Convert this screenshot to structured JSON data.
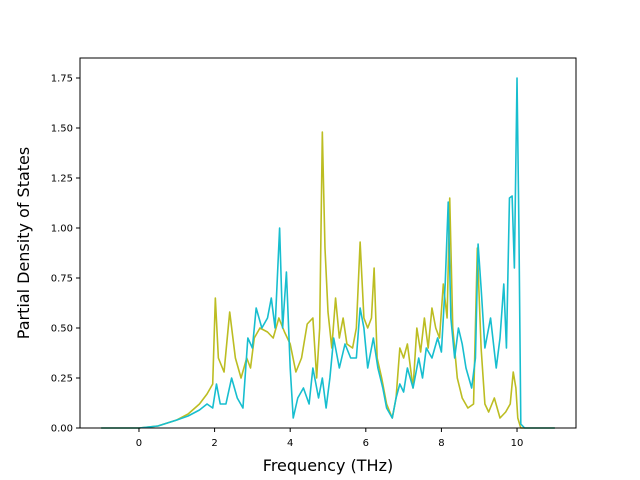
{
  "chart_data": {
    "type": "line",
    "title": "",
    "xlabel": "Frequency (THz)",
    "ylabel": "Partial Density of States",
    "xlim": [
      -1.56,
      11.56
    ],
    "ylim": [
      0.0,
      1.85
    ],
    "xticks": [
      0,
      2,
      4,
      6,
      8,
      10
    ],
    "xtick_labels": [
      "0",
      "2",
      "4",
      "6",
      "8",
      "10"
    ],
    "yticks": [
      0.0,
      0.25,
      0.5,
      0.75,
      1.0,
      1.25,
      1.5,
      1.75
    ],
    "ytick_labels": [
      "0.00",
      "0.25",
      "0.50",
      "0.75",
      "1.00",
      "1.25",
      "1.50",
      "1.75"
    ],
    "grid": false,
    "legend": "none",
    "series": [
      {
        "color": "#bcbd22",
        "points": [
          [
            -1.0,
            0.0
          ],
          [
            0.0,
            0.0
          ],
          [
            0.5,
            0.01
          ],
          [
            1.0,
            0.04
          ],
          [
            1.3,
            0.07
          ],
          [
            1.6,
            0.12
          ],
          [
            1.8,
            0.17
          ],
          [
            1.95,
            0.22
          ],
          [
            2.02,
            0.65
          ],
          [
            2.1,
            0.35
          ],
          [
            2.25,
            0.28
          ],
          [
            2.4,
            0.58
          ],
          [
            2.55,
            0.35
          ],
          [
            2.7,
            0.25
          ],
          [
            2.85,
            0.35
          ],
          [
            2.95,
            0.3
          ],
          [
            3.05,
            0.45
          ],
          [
            3.2,
            0.5
          ],
          [
            3.4,
            0.48
          ],
          [
            3.55,
            0.45
          ],
          [
            3.7,
            0.55
          ],
          [
            3.85,
            0.48
          ],
          [
            4.0,
            0.42
          ],
          [
            4.15,
            0.28
          ],
          [
            4.3,
            0.35
          ],
          [
            4.45,
            0.52
          ],
          [
            4.6,
            0.55
          ],
          [
            4.7,
            0.25
          ],
          [
            4.78,
            0.5
          ],
          [
            4.85,
            1.48
          ],
          [
            4.92,
            0.9
          ],
          [
            5.0,
            0.58
          ],
          [
            5.1,
            0.4
          ],
          [
            5.2,
            0.65
          ],
          [
            5.3,
            0.45
          ],
          [
            5.4,
            0.55
          ],
          [
            5.5,
            0.42
          ],
          [
            5.65,
            0.4
          ],
          [
            5.75,
            0.5
          ],
          [
            5.85,
            0.93
          ],
          [
            5.95,
            0.55
          ],
          [
            6.05,
            0.5
          ],
          [
            6.15,
            0.55
          ],
          [
            6.22,
            0.8
          ],
          [
            6.3,
            0.35
          ],
          [
            6.42,
            0.25
          ],
          [
            6.55,
            0.12
          ],
          [
            6.7,
            0.05
          ],
          [
            6.8,
            0.15
          ],
          [
            6.9,
            0.4
          ],
          [
            7.0,
            0.35
          ],
          [
            7.1,
            0.42
          ],
          [
            7.25,
            0.2
          ],
          [
            7.35,
            0.5
          ],
          [
            7.45,
            0.38
          ],
          [
            7.55,
            0.55
          ],
          [
            7.65,
            0.4
          ],
          [
            7.75,
            0.6
          ],
          [
            7.85,
            0.5
          ],
          [
            7.95,
            0.45
          ],
          [
            8.05,
            0.72
          ],
          [
            8.15,
            0.55
          ],
          [
            8.22,
            1.15
          ],
          [
            8.3,
            0.5
          ],
          [
            8.42,
            0.25
          ],
          [
            8.55,
            0.15
          ],
          [
            8.7,
            0.1
          ],
          [
            8.85,
            0.12
          ],
          [
            8.95,
            0.9
          ],
          [
            9.05,
            0.4
          ],
          [
            9.15,
            0.12
          ],
          [
            9.25,
            0.08
          ],
          [
            9.4,
            0.15
          ],
          [
            9.55,
            0.05
          ],
          [
            9.7,
            0.08
          ],
          [
            9.82,
            0.12
          ],
          [
            9.9,
            0.28
          ],
          [
            9.97,
            0.2
          ],
          [
            10.02,
            0.05
          ],
          [
            10.1,
            0.0
          ],
          [
            11.0,
            0.0
          ]
        ]
      },
      {
        "color": "#17becf",
        "points": [
          [
            -1.0,
            0.0
          ],
          [
            0.0,
            0.0
          ],
          [
            0.5,
            0.01
          ],
          [
            1.0,
            0.04
          ],
          [
            1.3,
            0.06
          ],
          [
            1.6,
            0.09
          ],
          [
            1.8,
            0.12
          ],
          [
            1.95,
            0.1
          ],
          [
            2.05,
            0.22
          ],
          [
            2.15,
            0.12
          ],
          [
            2.3,
            0.12
          ],
          [
            2.45,
            0.25
          ],
          [
            2.6,
            0.15
          ],
          [
            2.75,
            0.1
          ],
          [
            2.88,
            0.45
          ],
          [
            3.0,
            0.4
          ],
          [
            3.1,
            0.6
          ],
          [
            3.25,
            0.5
          ],
          [
            3.4,
            0.55
          ],
          [
            3.5,
            0.65
          ],
          [
            3.6,
            0.5
          ],
          [
            3.72,
            1.0
          ],
          [
            3.8,
            0.5
          ],
          [
            3.9,
            0.78
          ],
          [
            4.0,
            0.3
          ],
          [
            4.08,
            0.05
          ],
          [
            4.2,
            0.15
          ],
          [
            4.35,
            0.2
          ],
          [
            4.5,
            0.12
          ],
          [
            4.6,
            0.3
          ],
          [
            4.75,
            0.15
          ],
          [
            4.85,
            0.25
          ],
          [
            4.95,
            0.1
          ],
          [
            5.05,
            0.25
          ],
          [
            5.15,
            0.45
          ],
          [
            5.3,
            0.3
          ],
          [
            5.45,
            0.42
          ],
          [
            5.6,
            0.35
          ],
          [
            5.75,
            0.35
          ],
          [
            5.85,
            0.6
          ],
          [
            5.95,
            0.5
          ],
          [
            6.05,
            0.3
          ],
          [
            6.2,
            0.45
          ],
          [
            6.32,
            0.3
          ],
          [
            6.45,
            0.2
          ],
          [
            6.55,
            0.1
          ],
          [
            6.7,
            0.05
          ],
          [
            6.8,
            0.15
          ],
          [
            6.9,
            0.22
          ],
          [
            7.0,
            0.18
          ],
          [
            7.1,
            0.3
          ],
          [
            7.25,
            0.2
          ],
          [
            7.4,
            0.35
          ],
          [
            7.5,
            0.25
          ],
          [
            7.6,
            0.4
          ],
          [
            7.75,
            0.35
          ],
          [
            7.9,
            0.45
          ],
          [
            8.0,
            0.38
          ],
          [
            8.1,
            0.72
          ],
          [
            8.18,
            1.13
          ],
          [
            8.25,
            0.55
          ],
          [
            8.35,
            0.35
          ],
          [
            8.45,
            0.5
          ],
          [
            8.55,
            0.42
          ],
          [
            8.65,
            0.3
          ],
          [
            8.8,
            0.2
          ],
          [
            8.9,
            0.35
          ],
          [
            8.97,
            0.92
          ],
          [
            9.05,
            0.7
          ],
          [
            9.15,
            0.4
          ],
          [
            9.3,
            0.55
          ],
          [
            9.45,
            0.3
          ],
          [
            9.55,
            0.45
          ],
          [
            9.65,
            0.72
          ],
          [
            9.72,
            0.4
          ],
          [
            9.8,
            1.15
          ],
          [
            9.87,
            1.16
          ],
          [
            9.93,
            0.8
          ],
          [
            10.0,
            1.75
          ],
          [
            10.05,
            1.0
          ],
          [
            10.1,
            0.02
          ],
          [
            10.2,
            0.0
          ],
          [
            11.0,
            0.0
          ]
        ]
      }
    ]
  }
}
